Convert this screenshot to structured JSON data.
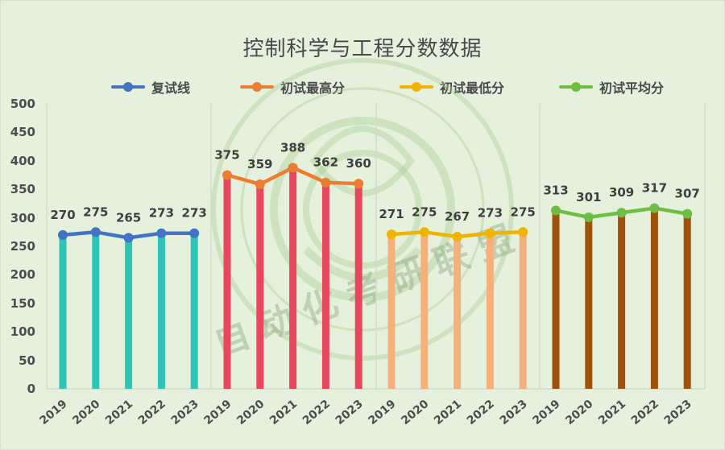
{
  "chart_data": {
    "type": "bar",
    "title": "控制科学与工程分数数据",
    "xlabel": "",
    "ylabel": "",
    "ylim": [
      0,
      500
    ],
    "yticks": [
      0,
      50,
      100,
      150,
      200,
      250,
      300,
      350,
      400,
      450,
      500
    ],
    "grid": false,
    "legend_position": "top",
    "categories": [
      "2019",
      "2020",
      "2021",
      "2022",
      "2023"
    ],
    "series": [
      {
        "name": "复试线",
        "values": [
          270,
          275,
          265,
          273,
          273
        ],
        "line_color": "#4472c4",
        "bar_color": "#2ec4b6"
      },
      {
        "name": "初试最高分",
        "values": [
          375,
          359,
          388,
          362,
          360
        ],
        "line_color": "#ed7d31",
        "bar_color": "#e8465d"
      },
      {
        "name": "初试最低分",
        "values": [
          271,
          275,
          267,
          273,
          275
        ],
        "line_color": "#f0b400",
        "bar_color": "#f5b07c"
      },
      {
        "name": "初试平均分",
        "values": [
          313,
          301,
          309,
          317,
          307
        ],
        "line_color": "#70bd43",
        "bar_color": "#a0520c"
      }
    ]
  },
  "title": "控制科学与工程分数数据",
  "legend": [
    {
      "label": "复试线",
      "color": "#4472c4"
    },
    {
      "label": "初试最高分",
      "color": "#ed7d31"
    },
    {
      "label": "初试最低分",
      "color": "#f0b400"
    },
    {
      "label": "初试平均分",
      "color": "#70bd43"
    }
  ],
  "y_axis": {
    "ticks": [
      "500",
      "450",
      "400",
      "350",
      "300",
      "250",
      "200",
      "150",
      "100",
      "50",
      "0"
    ]
  },
  "watermark": {
    "cn": "自动化考研联盟"
  }
}
